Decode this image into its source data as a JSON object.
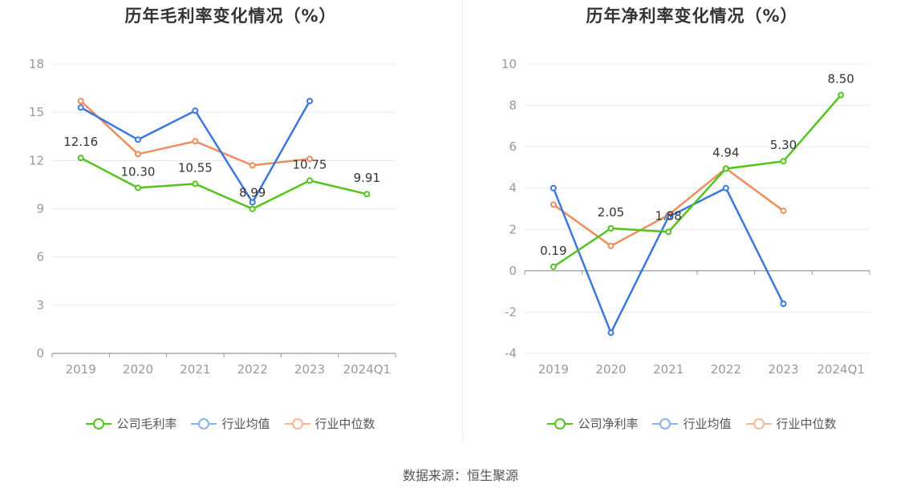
{
  "source": "数据来源：恒生聚源",
  "legend_labels": {
    "gross": [
      "公司毛利率",
      "行业均值",
      "行业中位数"
    ],
    "net": [
      "公司净利率",
      "行业均值",
      "行业中位数"
    ]
  },
  "colors": {
    "company": "#52c41a",
    "average": "#3a78e0",
    "median": "#f08c5a",
    "grid": "#e6e8f0",
    "axis": "#999999"
  },
  "chart_data": [
    {
      "type": "line",
      "title": "历年毛利率变化情况（%）",
      "categories": [
        "2019",
        "2020",
        "2021",
        "2022",
        "2023",
        "2024Q1"
      ],
      "ylim": [
        0,
        18
      ],
      "yticks": [
        0,
        3,
        6,
        9,
        12,
        15,
        18
      ],
      "grid": true,
      "legend": "bottom",
      "series": [
        {
          "name": "公司毛利率",
          "values": [
            12.16,
            10.3,
            10.55,
            8.99,
            10.75,
            9.91
          ],
          "labels": [
            "12.16",
            "10.30",
            "10.55",
            "8.99",
            "10.75",
            "9.91"
          ],
          "color": "#52c41a"
        },
        {
          "name": "行业均值",
          "values": [
            15.3,
            13.3,
            15.1,
            9.4,
            15.7,
            null
          ],
          "color": "#3a78e0"
        },
        {
          "name": "行业中位数",
          "values": [
            15.7,
            12.4,
            13.2,
            11.7,
            12.1,
            null
          ],
          "color": "#f08c5a"
        }
      ]
    },
    {
      "type": "line",
      "title": "历年净利率变化情况（%）",
      "categories": [
        "2019",
        "2020",
        "2021",
        "2022",
        "2023",
        "2024Q1"
      ],
      "ylim": [
        -4,
        10
      ],
      "yticks": [
        -4,
        -2,
        0,
        2,
        4,
        6,
        8,
        10
      ],
      "grid": true,
      "legend": "bottom",
      "series": [
        {
          "name": "公司净利率",
          "values": [
            0.19,
            2.05,
            1.88,
            4.94,
            5.3,
            8.5
          ],
          "labels": [
            "0.19",
            "2.05",
            "1.88",
            "4.94",
            "5.30",
            "8.50"
          ],
          "color": "#52c41a"
        },
        {
          "name": "行业均值",
          "values": [
            4.0,
            -3.0,
            2.6,
            4.0,
            -1.6,
            null
          ],
          "color": "#3a78e0"
        },
        {
          "name": "行业中位数",
          "values": [
            3.2,
            1.2,
            2.7,
            4.95,
            2.9,
            null
          ],
          "color": "#f08c5a"
        }
      ]
    }
  ]
}
